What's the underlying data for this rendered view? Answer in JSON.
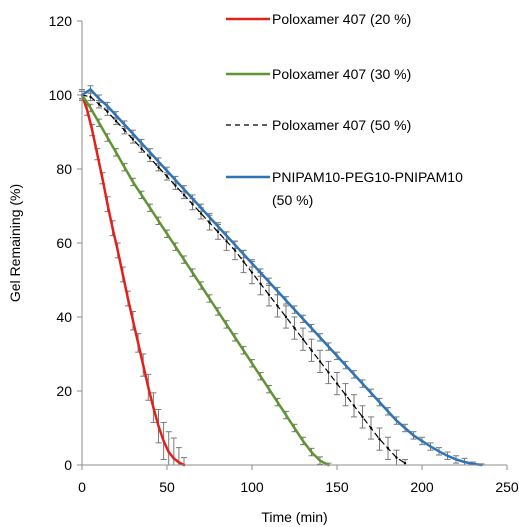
{
  "chart_data": {
    "type": "line",
    "title": "",
    "xlabel": "Time (min)",
    "ylabel": "Gel Remaining (%)",
    "xlim": [
      0,
      250
    ],
    "ylim": [
      0,
      120
    ],
    "xticks": [
      0,
      50,
      100,
      150,
      200,
      250
    ],
    "yticks": [
      0,
      20,
      40,
      60,
      80,
      100,
      120
    ],
    "grid": false,
    "legend_position": "top-right",
    "series": [
      {
        "name": "Poloxamer 407 (20 %)",
        "color": "#e3201b",
        "style": "solid",
        "x": [
          0,
          3,
          6,
          9,
          12,
          15,
          18,
          21,
          24,
          27,
          30,
          33,
          36,
          39,
          42,
          45,
          48,
          51,
          54,
          57,
          60
        ],
        "y": [
          100,
          96,
          90.5,
          84,
          77.5,
          70.5,
          64,
          58,
          51.5,
          45,
          39,
          33,
          27,
          21,
          15.5,
          10.5,
          6.5,
          3.5,
          1.8,
          0.7,
          0
        ],
        "err": [
          1.5,
          1.5,
          1.5,
          1.5,
          1.5,
          2,
          2,
          2,
          2,
          2,
          2.5,
          2.5,
          3,
          3.5,
          4,
          4.5,
          5,
          5.5,
          5.5,
          4,
          2
        ]
      },
      {
        "name": "Poloxamer 407 (30 %)",
        "color": "#5e9632",
        "style": "solid",
        "x": [
          0,
          5,
          10,
          15,
          20,
          25,
          30,
          35,
          40,
          45,
          50,
          55,
          60,
          65,
          70,
          75,
          80,
          85,
          90,
          95,
          100,
          105,
          110,
          115,
          120,
          125,
          130,
          135,
          140,
          145
        ],
        "y": [
          100,
          96.5,
          92.5,
          88.5,
          84.5,
          80.5,
          76.5,
          73,
          69.5,
          66,
          62.5,
          59,
          55.5,
          52,
          48.5,
          45,
          41.5,
          38,
          34.5,
          31,
          27.5,
          24,
          20.5,
          17,
          13.5,
          10,
          6.5,
          3.5,
          1.2,
          0
        ],
        "err": [
          1,
          1,
          1,
          1,
          1,
          1,
          1,
          1,
          1,
          1,
          1,
          1,
          1,
          1,
          1,
          1,
          1,
          1,
          1,
          1,
          1,
          1,
          1,
          1,
          1,
          1,
          1,
          1,
          1,
          0.5
        ]
      },
      {
        "name": "Poloxamer 407 (50 %)",
        "color": "#000000",
        "style": "dashed",
        "x": [
          0,
          5,
          10,
          15,
          20,
          25,
          30,
          35,
          40,
          45,
          50,
          55,
          60,
          65,
          70,
          75,
          80,
          85,
          90,
          95,
          100,
          105,
          110,
          115,
          120,
          125,
          130,
          135,
          140,
          145,
          150,
          155,
          160,
          165,
          170,
          175,
          180,
          185,
          190
        ],
        "y": [
          100,
          99.5,
          97.5,
          95.5,
          93,
          90.5,
          88,
          85.5,
          83,
          80.5,
          78,
          75.5,
          73,
          70.5,
          68,
          65.5,
          63,
          60.5,
          58,
          55,
          52,
          49,
          46,
          43,
          40,
          37,
          34,
          31,
          28,
          25,
          22,
          19,
          16,
          13,
          10,
          7,
          4.5,
          2,
          0.5
        ],
        "err": [
          1,
          1,
          1,
          1,
          1,
          1,
          1,
          1,
          1,
          1,
          1,
          1,
          1,
          1.5,
          1.5,
          2,
          2,
          2.5,
          2.5,
          3,
          3,
          3,
          3,
          3,
          3,
          3,
          3,
          3,
          3,
          3,
          3,
          3,
          3,
          3,
          3,
          3,
          3,
          2,
          1
        ]
      },
      {
        "name": "PNIPAM10-PEG10-PNIPAM10 (50 %)",
        "color": "#2e75b6",
        "style": "solid",
        "x": [
          0,
          5,
          10,
          15,
          20,
          25,
          30,
          35,
          40,
          45,
          50,
          55,
          60,
          65,
          70,
          75,
          80,
          85,
          90,
          95,
          100,
          105,
          110,
          115,
          120,
          125,
          130,
          135,
          140,
          145,
          150,
          155,
          160,
          165,
          170,
          175,
          180,
          185,
          190,
          195,
          200,
          205,
          210,
          215,
          220,
          225,
          230,
          235
        ],
        "y": [
          100,
          101.5,
          99,
          97,
          94.5,
          92,
          89.5,
          87,
          84.5,
          82,
          79.5,
          77,
          74.5,
          72,
          69.5,
          67,
          64.5,
          62,
          59.5,
          57,
          54.5,
          52,
          49.5,
          47,
          44.5,
          42,
          39.5,
          37,
          34.5,
          32,
          29.5,
          27,
          24.5,
          22,
          19.5,
          17,
          14.5,
          12,
          10,
          8,
          6.5,
          5,
          3.7,
          2.5,
          1.5,
          0.8,
          0.3,
          0
        ],
        "err": [
          1,
          1,
          1,
          1,
          1,
          1,
          1,
          1,
          1,
          1,
          1,
          1,
          1,
          1,
          1,
          1,
          1,
          1,
          1,
          1,
          1,
          1,
          1,
          1,
          1,
          1,
          1,
          1,
          1,
          1,
          1,
          1,
          1,
          1,
          1,
          1,
          1,
          1,
          1,
          1,
          1,
          1,
          1,
          1,
          1,
          1,
          0.5,
          0.3
        ]
      }
    ]
  }
}
